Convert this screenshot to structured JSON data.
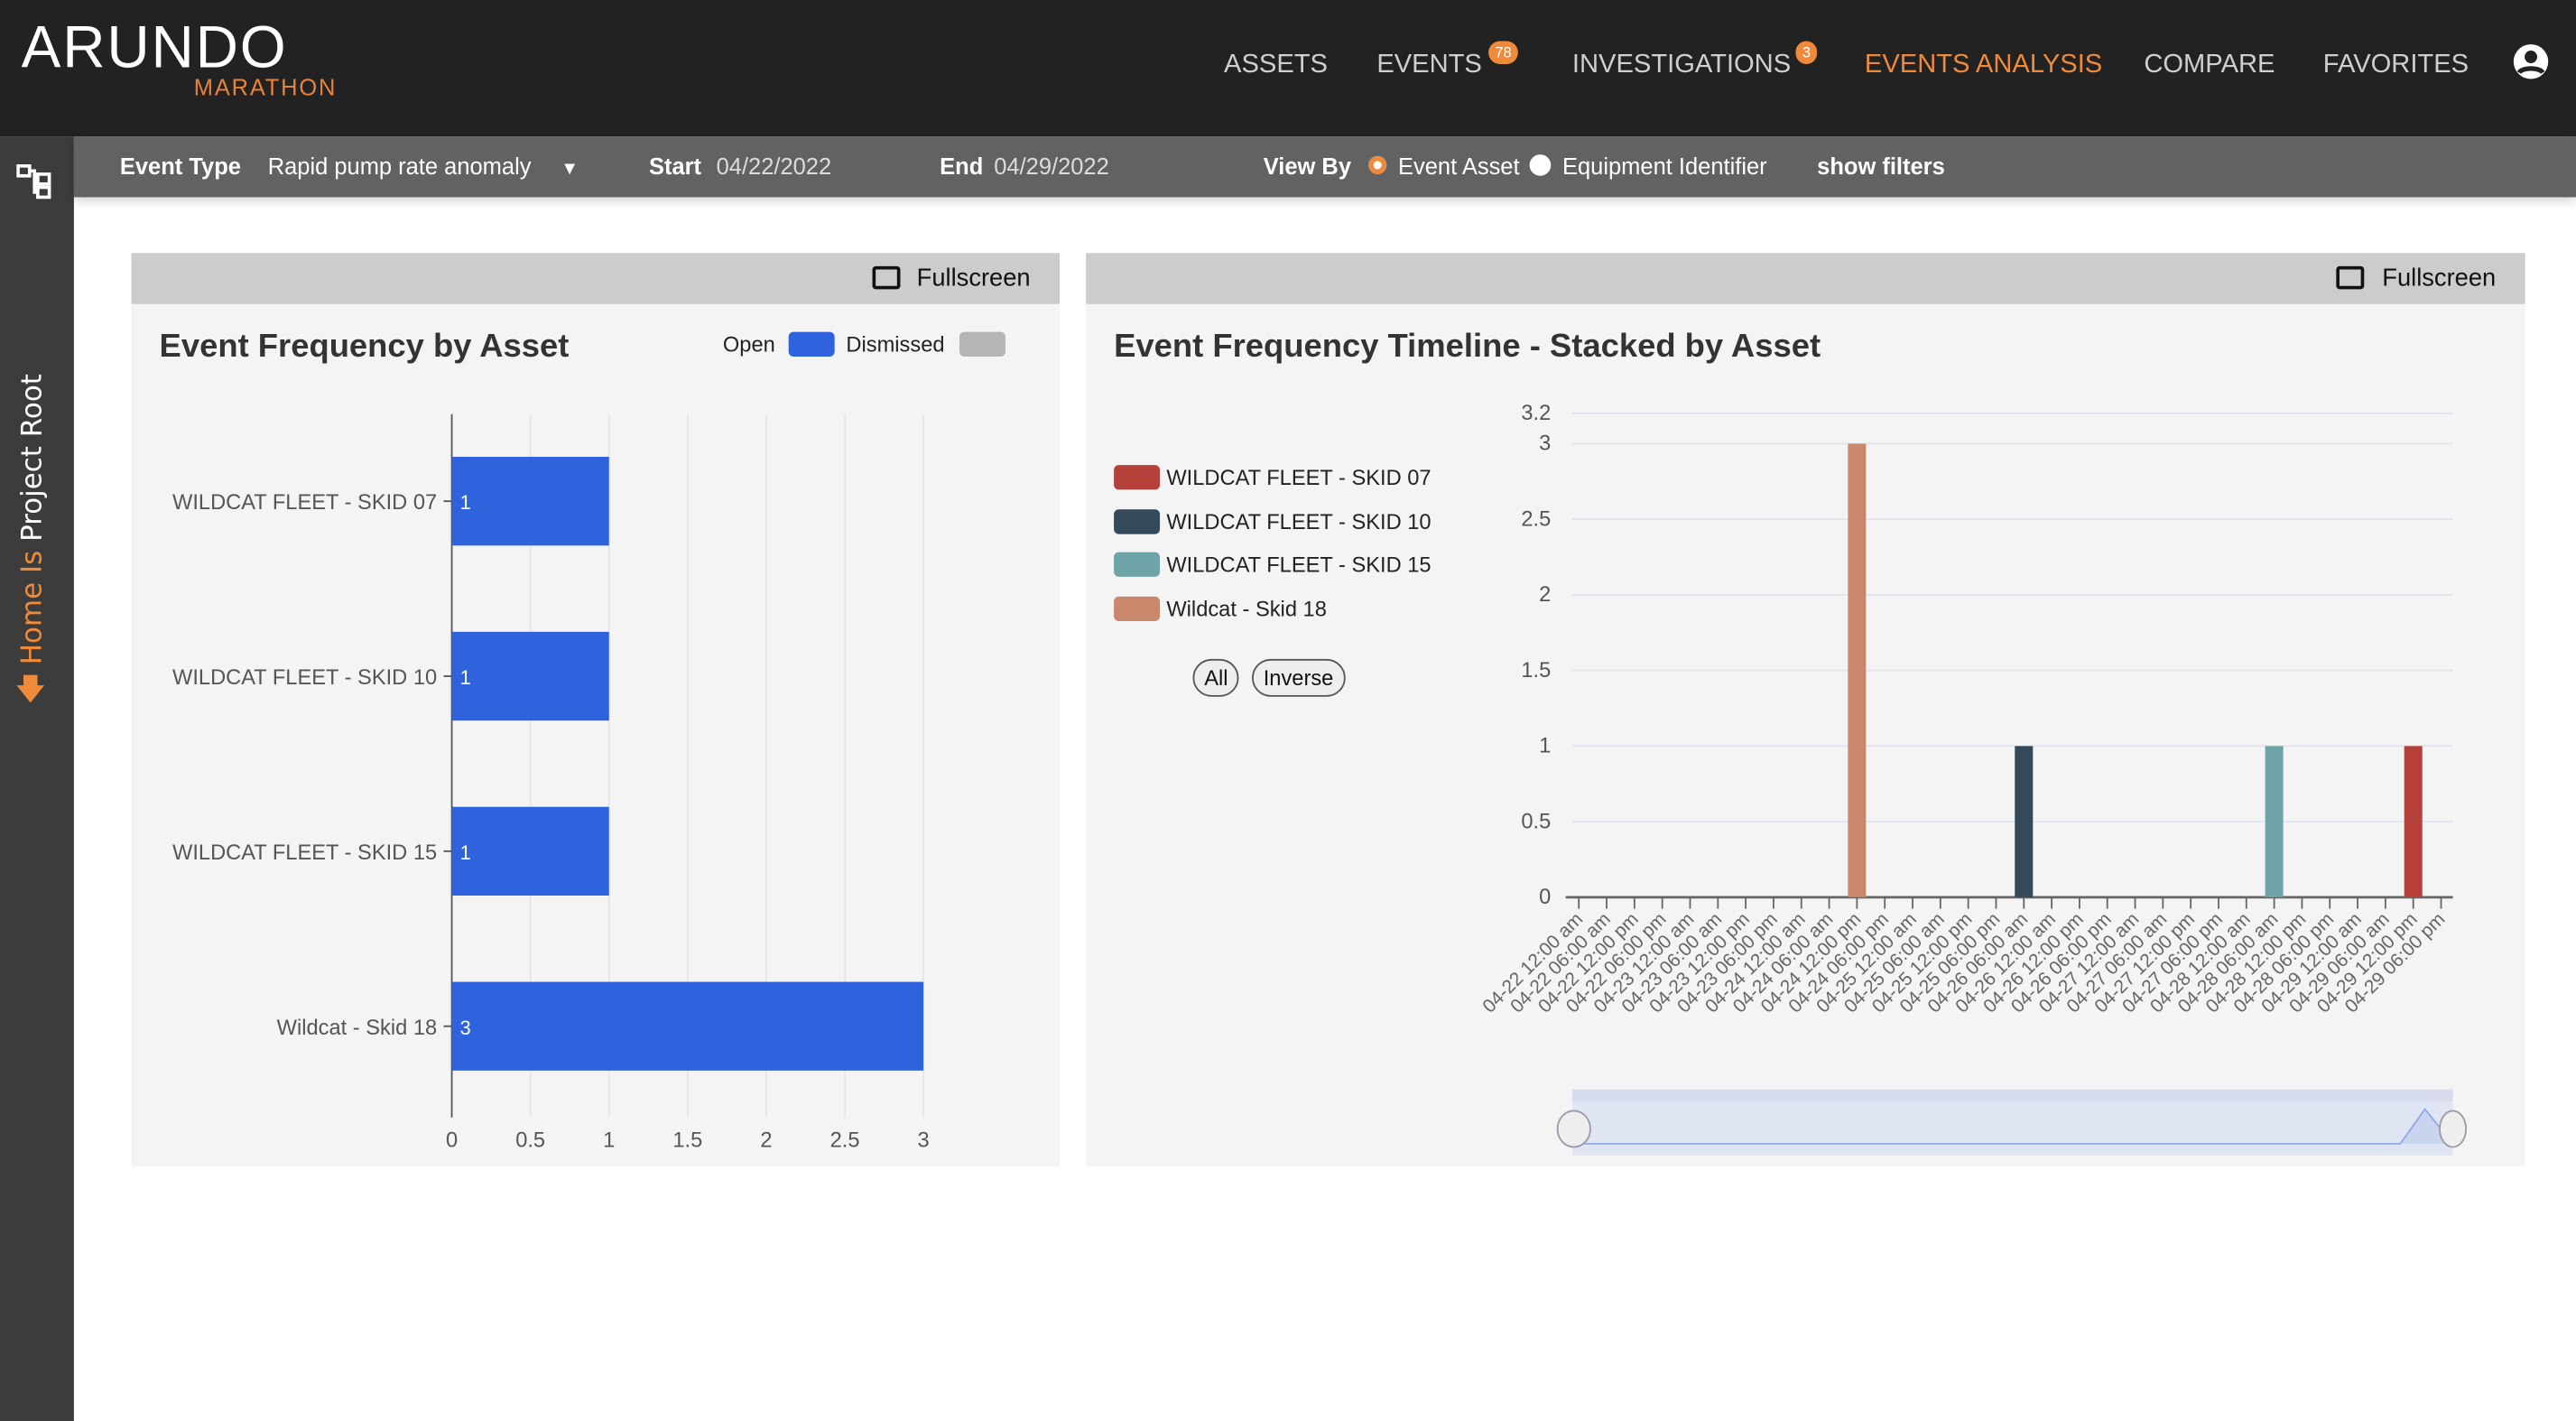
{
  "header": {
    "logo": "ARUNDO",
    "sub_logo": "MARATHON",
    "nav": [
      {
        "label": "ASSETS"
      },
      {
        "label": "EVENTS",
        "badge": "78"
      },
      {
        "label": "INVESTIGATIONS",
        "badge": "3"
      },
      {
        "label": "EVENTS ANALYSIS",
        "active": true
      },
      {
        "label": "COMPARE"
      },
      {
        "label": "FAVORITES"
      }
    ]
  },
  "sidebar": {
    "home_label": "Home Is",
    "root_label": "Project Root"
  },
  "filters": {
    "event_type_label": "Event Type",
    "event_type_value": "Rapid pump rate anomaly",
    "start_label": "Start",
    "start_value": "04/22/2022",
    "end_label": "End",
    "end_value": "04/29/2022",
    "view_by_label": "View By",
    "view_by_options": [
      "Event Asset",
      "Equipment Identifier"
    ],
    "view_by_selected": "Event Asset",
    "show_filters": "show filters"
  },
  "colors": {
    "accent": "#ef8a3a",
    "open": "#2f62dd",
    "dismissed": "#b5b5b5"
  },
  "panels": {
    "fullscreen": "Fullscreen"
  },
  "chart_data": [
    {
      "type": "bar",
      "orientation": "horizontal",
      "title": "Event Frequency by Asset",
      "legend": [
        "Open",
        "Dismissed"
      ],
      "categories": [
        "WILDCAT FLEET - SKID 07",
        "WILDCAT FLEET - SKID 10",
        "WILDCAT FLEET - SKID 15",
        "Wildcat - Skid 18"
      ],
      "series": [
        {
          "name": "Open",
          "values": [
            1,
            1,
            1,
            3
          ]
        },
        {
          "name": "Dismissed",
          "values": [
            0,
            0,
            0,
            0
          ]
        }
      ],
      "xlim": [
        0,
        3
      ],
      "xticks": [
        "0",
        "0.5",
        "1",
        "1.5",
        "2",
        "2.5",
        "3"
      ],
      "grid": true
    },
    {
      "type": "bar",
      "stacked": true,
      "title": "Event Frequency Timeline - Stacked by Asset",
      "buttons": [
        "All",
        "Inverse"
      ],
      "legend": [
        {
          "name": "WILDCAT FLEET - SKID 07",
          "color": "#b5403a"
        },
        {
          "name": "WILDCAT FLEET - SKID 10",
          "color": "#34495a"
        },
        {
          "name": "WILDCAT FLEET - SKID 15",
          "color": "#6ea3a8"
        },
        {
          "name": "Wildcat - Skid 18",
          "color": "#c9876c"
        }
      ],
      "ylim": [
        0,
        3.2
      ],
      "yticks": [
        "0",
        "0.5",
        "1",
        "1.5",
        "2",
        "2.5",
        "3",
        "3.2"
      ],
      "x": [
        "04-22 12:00 am",
        "04-22 06:00 am",
        "04-22 12:00 pm",
        "04-22 06:00 pm",
        "04-23 12:00 am",
        "04-23 06:00 am",
        "04-23 12:00 pm",
        "04-23 06:00 pm",
        "04-24 12:00 am",
        "04-24 06:00 am",
        "04-24 12:00 pm",
        "04-24 06:00 pm",
        "04-25 12:00 am",
        "04-25 06:00 am",
        "04-25 12:00 pm",
        "04-25 06:00 pm",
        "04-26 06:00 am",
        "04-26 12:00 am",
        "04-26 12:00 pm",
        "04-26 06:00 pm",
        "04-27 12:00 am",
        "04-27 06:00 am",
        "04-27 12:00 pm",
        "04-27 06:00 pm",
        "04-28 12:00 am",
        "04-28 06:00 am",
        "04-28 12:00 pm",
        "04-28 06:00 pm",
        "04-29 12:00 am",
        "04-29 06:00 am",
        "04-29 12:00 pm",
        "04-29 06:00 pm"
      ],
      "points": [
        {
          "series": "Wildcat - Skid 18",
          "x": "04-24 12:00 pm",
          "y": 3
        },
        {
          "series": "WILDCAT FLEET - SKID 10",
          "x": "04-26 06:00 am",
          "y": 1
        },
        {
          "series": "WILDCAT FLEET - SKID 15",
          "x": "04-28 06:00 am",
          "y": 1
        },
        {
          "series": "WILDCAT FLEET - SKID 07",
          "x": "04-29 12:00 pm",
          "y": 1
        }
      ]
    }
  ]
}
